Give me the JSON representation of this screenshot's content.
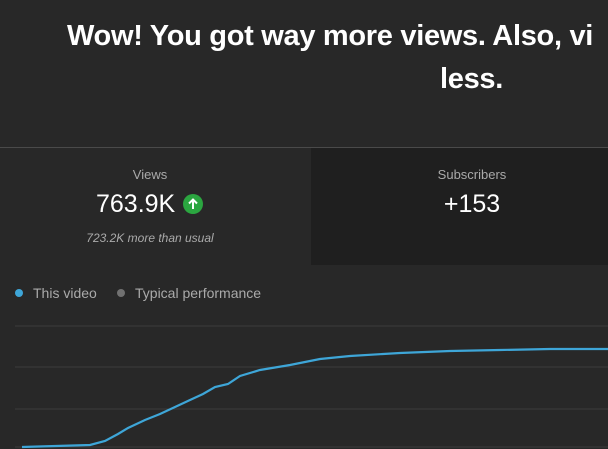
{
  "header": {
    "title_lines": [
      "Wow! You got way more views. Also, vi",
      "less."
    ]
  },
  "cards": [
    {
      "label": "Views",
      "value": "763.9K",
      "note": "723.2K more than usual"
    },
    {
      "label": "Subscribers",
      "value": "+153"
    }
  ],
  "legend": [
    "This video",
    "Typical performance"
  ]
}
